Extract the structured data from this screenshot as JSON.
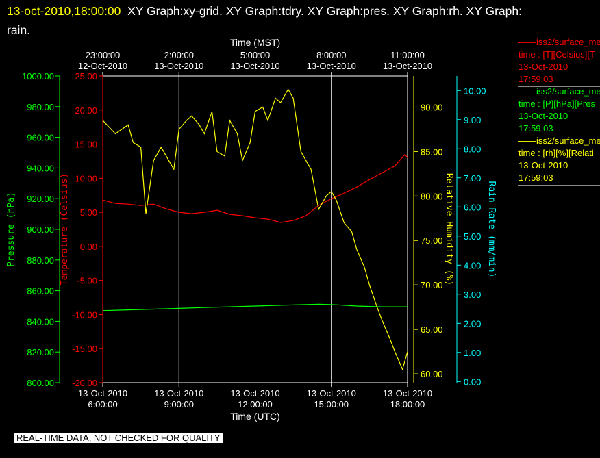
{
  "header": {
    "timestamp": "13-oct-2010,18:00:00",
    "graphs": "XY Graph:xy-grid.  XY Graph:tdry.  XY Graph:pres.  XY Graph:rh.  XY Graph:",
    "graphs_line2": "rain."
  },
  "warning": "REAL-TIME DATA, NOT CHECKED FOR QUALITY",
  "legend": [
    {
      "color": "#ff0000",
      "line1": "iss2/surface_me",
      "line2": "time : [T][Celsius][T",
      "line3": "13-Oct-2010",
      "line4": "17:59:03"
    },
    {
      "color": "#00ff00",
      "line1": "iss2/surface_me",
      "line2": "time : [P][hPa][Pres",
      "line3": "13-Oct-2010",
      "line4": "17:59:03"
    },
    {
      "color": "#ffff00",
      "line1": "iss2/surface_me",
      "line2": "time : [rh][%][Relati",
      "line3": "13-Oct-2010",
      "line4": "17:59:03"
    }
  ],
  "chart_data": {
    "type": "line",
    "x_top_label": "Time (MST)",
    "x_bottom_label": "Time (UTC)",
    "x_top_ticks": [
      {
        "t": "23:00:00",
        "d": "12-Oct-2010"
      },
      {
        "t": "2:00:00",
        "d": "13-Oct-2010"
      },
      {
        "t": "5:00:00",
        "d": "13-Oct-2010"
      },
      {
        "t": "8:00:00",
        "d": "13-Oct-2010"
      },
      {
        "t": "11:00:00",
        "d": "13-Oct-2010"
      }
    ],
    "x_bottom_ticks": [
      {
        "d": "13-Oct-2010",
        "t": "6:00:00"
      },
      {
        "d": "13-Oct-2010",
        "t": "9:00:00"
      },
      {
        "d": "13-Oct-2010",
        "t": "12:00:00"
      },
      {
        "d": "13-Oct-2010",
        "t": "15:00:00"
      },
      {
        "d": "13-Oct-2010",
        "t": "18:00:00"
      }
    ],
    "x_range_utc_hours": [
      6,
      18
    ],
    "grid_hours_utc": [
      9,
      12,
      15
    ],
    "axes": {
      "pressure": {
        "label": "Pressure (hPa)",
        "color": "#00ff00",
        "min": 800,
        "max": 1000,
        "ticks": [
          "800.00",
          "820.00",
          "840.00",
          "860.00",
          "880.00",
          "900.00",
          "920.00",
          "940.00",
          "960.00",
          "980.00",
          "1000.00"
        ]
      },
      "temperature": {
        "label": "Temperature (Celsius)",
        "color": "#ff0000",
        "min": -20,
        "max": 25,
        "ticks": [
          "-20.00",
          "-15.00",
          "-10.00",
          "-5.00",
          "0.00",
          "5.00",
          "10.00",
          "15.00",
          "20.00",
          "25.00"
        ]
      },
      "humidity": {
        "label": "Relative Humidity (%)",
        "color": "#ffff00",
        "min": 59,
        "max": 93.5,
        "ticks": [
          "60.00",
          "65.00",
          "70.00",
          "75.00",
          "80.00",
          "85.00",
          "90.00"
        ]
      },
      "rain": {
        "label": "Rain Rate (mm/min)",
        "color": "#00ffff",
        "min": -0.04,
        "max": 10.5,
        "ticks": [
          "0.00",
          "1.00",
          "2.00",
          "3.00",
          "4.00",
          "5.00",
          "6.00",
          "7.00",
          "8.00",
          "9.00",
          "10.00"
        ]
      }
    },
    "series": [
      {
        "axis": "temperature",
        "color": "#ff0000",
        "x": [
          6.0,
          6.5,
          7.0,
          7.5,
          8.0,
          8.5,
          9.0,
          9.5,
          10.0,
          10.5,
          11.0,
          11.5,
          12.0,
          12.5,
          13.0,
          13.5,
          14.0,
          14.5,
          15.0,
          15.5,
          16.0,
          16.5,
          17.0,
          17.5,
          17.9,
          18.0
        ],
        "y": [
          6.8,
          6.3,
          6.2,
          6.0,
          6.2,
          5.5,
          5.0,
          4.8,
          5.0,
          5.3,
          4.7,
          4.5,
          4.2,
          4.0,
          3.5,
          3.8,
          4.5,
          6.0,
          7.0,
          7.8,
          8.7,
          9.8,
          10.8,
          11.8,
          13.5,
          13.0
        ]
      },
      {
        "axis": "pressure",
        "color": "#00ff00",
        "x": [
          6.0,
          7.0,
          8.0,
          9.0,
          10.0,
          11.0,
          12.0,
          13.0,
          14.0,
          14.5,
          15.0,
          15.5,
          16.0,
          17.0,
          18.0
        ],
        "y": [
          847.0,
          847.5,
          848.0,
          848.5,
          849.0,
          849.5,
          850.0,
          850.5,
          851.0,
          851.2,
          851.0,
          850.5,
          850.0,
          849.5,
          849.5
        ]
      },
      {
        "axis": "humidity",
        "color": "#ffff00",
        "x": [
          6.0,
          6.5,
          7.0,
          7.2,
          7.5,
          7.7,
          8.0,
          8.3,
          8.5,
          8.8,
          9.0,
          9.3,
          9.5,
          9.8,
          10.0,
          10.3,
          10.5,
          10.8,
          11.0,
          11.3,
          11.5,
          11.8,
          12.0,
          12.3,
          12.5,
          12.8,
          13.0,
          13.3,
          13.5,
          13.8,
          14.0,
          14.2,
          14.5,
          14.8,
          15.0,
          15.2,
          15.5,
          15.8,
          16.0,
          16.3,
          16.5,
          16.8,
          17.0,
          17.3,
          17.5,
          17.8,
          18.0
        ],
        "y": [
          88.5,
          87.0,
          88.0,
          86.0,
          85.5,
          78.0,
          84.0,
          85.5,
          84.5,
          83.0,
          87.5,
          88.5,
          89.0,
          88.0,
          87.0,
          89.5,
          85.0,
          84.5,
          88.5,
          87.0,
          84.0,
          86.0,
          89.5,
          90.0,
          88.5,
          91.0,
          90.5,
          92.0,
          91.0,
          85.0,
          84.0,
          83.0,
          78.5,
          80.0,
          80.5,
          79.5,
          77.0,
          76.0,
          74.0,
          72.0,
          70.0,
          67.5,
          66.0,
          64.0,
          62.5,
          60.5,
          62.5
        ]
      }
    ]
  }
}
